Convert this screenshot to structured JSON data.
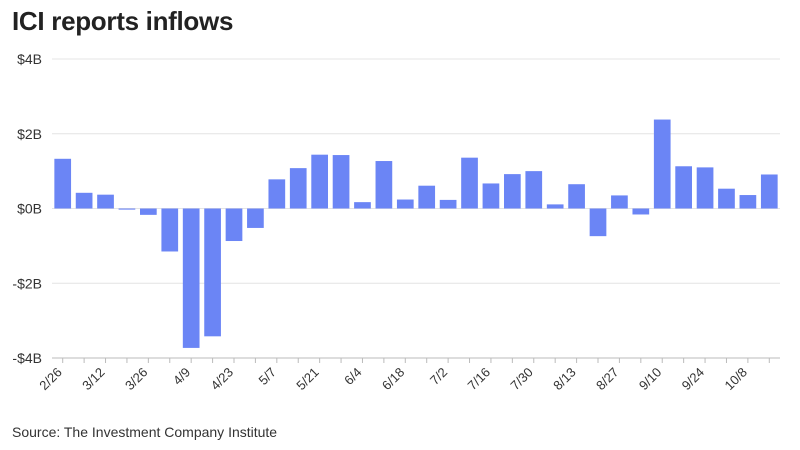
{
  "header": {
    "title": "ICI reports inflows"
  },
  "footer": {
    "source": "Source: The Investment Company Institute"
  },
  "chart_data": {
    "type": "bar",
    "title": "ICI reports inflows",
    "xlabel": "",
    "ylabel": "",
    "ylim": [
      -4,
      4
    ],
    "y_ticks": [
      4,
      2,
      0,
      -2,
      -4
    ],
    "y_tick_labels": [
      "$4B",
      "$2B",
      "$0B",
      "-$2B",
      "-$4B"
    ],
    "x_tick_labels": [
      "2/26",
      "3/12",
      "3/26",
      "4/9",
      "4/23",
      "5/7",
      "5/21",
      "6/4",
      "6/18",
      "7/2",
      "7/16",
      "7/30",
      "8/13",
      "8/27",
      "9/10",
      "9/24",
      "10/8"
    ],
    "unit": "billion USD",
    "bar_color": "#6b85f5",
    "grid": true,
    "categories": [
      "2/26",
      "3/5",
      "3/12",
      "3/19",
      "3/26",
      "4/2",
      "4/9",
      "4/16",
      "4/23",
      "4/30",
      "5/7",
      "5/14",
      "5/21",
      "5/28",
      "6/4",
      "6/11",
      "6/18",
      "6/25",
      "7/2",
      "7/9",
      "7/16",
      "7/23",
      "7/30",
      "8/6",
      "8/13",
      "8/20",
      "8/27",
      "9/3",
      "9/10",
      "9/17",
      "9/24",
      "10/1",
      "10/8",
      "10/15"
    ],
    "values": [
      1.33,
      0.42,
      0.37,
      -0.03,
      -0.17,
      -1.15,
      -3.73,
      -3.42,
      -0.87,
      -0.52,
      0.78,
      1.08,
      1.44,
      1.43,
      0.17,
      1.27,
      0.24,
      0.61,
      0.23,
      1.36,
      0.67,
      0.92,
      1.0,
      0.11,
      0.65,
      -0.74,
      0.35,
      -0.16,
      2.38,
      1.13,
      1.1,
      0.53,
      0.36,
      0.91
    ]
  }
}
